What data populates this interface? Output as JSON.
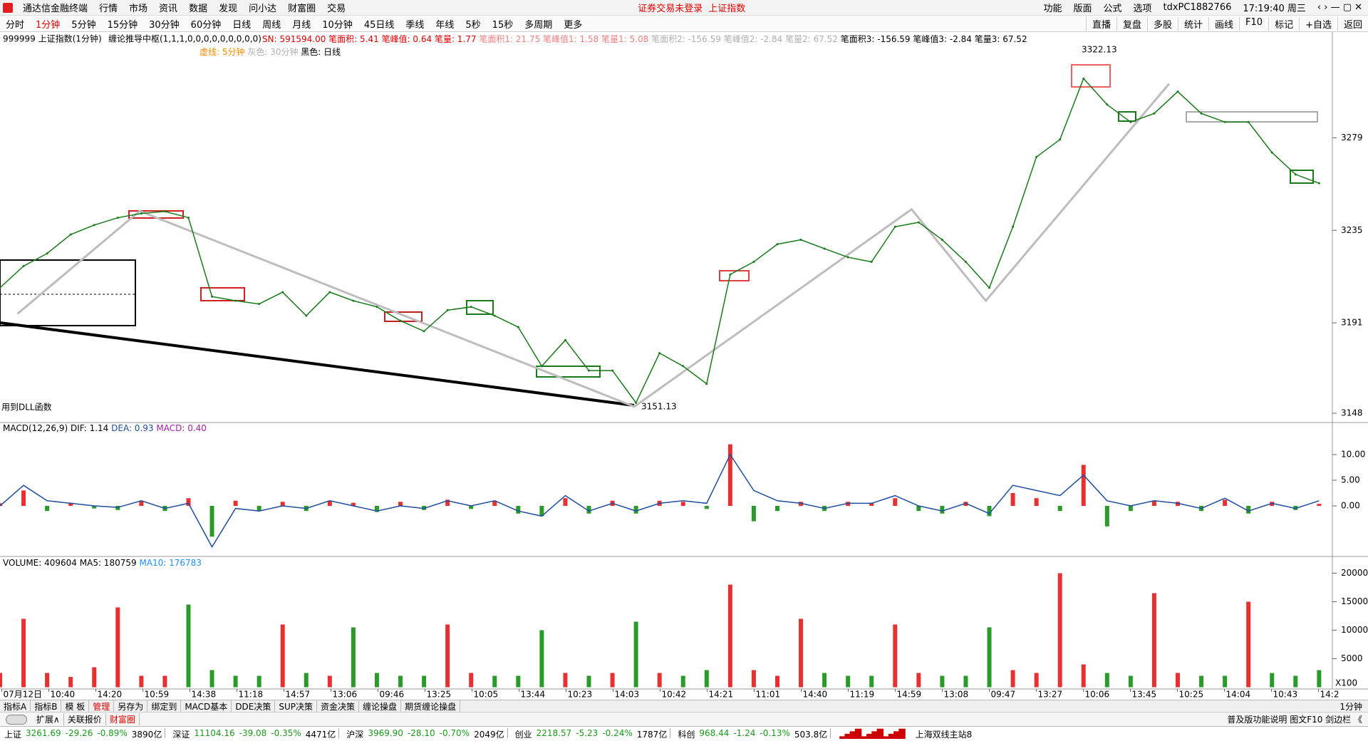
{
  "title_bar": {
    "app": "通达信金融终端",
    "menus": [
      "行情",
      "市场",
      "资讯",
      "数据",
      "发现",
      "问小达",
      "财富圈",
      "交易"
    ],
    "notice": "证券交易未登录",
    "notice_stock": "上证指数",
    "tools": [
      "功能",
      "版面",
      "公式",
      "选项"
    ],
    "user": "tdxPC1882766",
    "clock": "17:19:40 周三"
  },
  "period_bar": {
    "periods": [
      "分时",
      "1分钟",
      "5分钟",
      "15分钟",
      "30分钟",
      "60分钟",
      "日线",
      "周线",
      "月线",
      "10分钟",
      "45日线",
      "季线",
      "年线",
      "5秒",
      "15秒",
      "多周期",
      "更多"
    ],
    "active": 1,
    "tools": [
      "直播",
      "复盘",
      "多股",
      "统计",
      "画线",
      "F10",
      "标记",
      "+自选",
      "返回"
    ]
  },
  "chart_info": {
    "symbol": "999999 上证指数(1分钟)",
    "indicator": "缠论推导中枢(1,1,1,0,0,0,0,0,0,0,0,0)",
    "sn": "SN: 591594.00",
    "stats": [
      {
        "text": "笔面积: 5.41  笔峰值: 0.64  笔量: 1.77",
        "color": "#e00000"
      },
      {
        "text": "笔面积1: 21.75  笔峰值1: 1.58  笔量1: 5.08",
        "color": "#f08080"
      },
      {
        "text": "笔面积2: -156.59  笔峰值2: -2.84  笔量2: 67.52",
        "color": "#b0b0b0"
      },
      {
        "text": "笔面积3: -156.59  笔峰值3: -2.84  笔量3: 67.52",
        "color": "#000000"
      }
    ],
    "legend": [
      {
        "text": "虚线: 5分钟",
        "color": "#ff8c00"
      },
      {
        "text": "灰色: 30分钟",
        "color": "#b0b0b0"
      },
      {
        "text": "黑色: 日线",
        "color": "#000000"
      }
    ],
    "dll_note": "用到DLL函数"
  },
  "price_chart": {
    "type": "line",
    "color": "#1a7a1a",
    "bi_color": "#bdbdbd",
    "ylim": [
      3143.6,
      3329.3
    ],
    "yticks": [
      3148,
      3191,
      3235,
      3279
    ],
    "values": [
      3207.7,
      3218,
      3224,
      3233,
      3237.5,
      3241,
      3243,
      3244,
      3241,
      3203.5,
      3201.5,
      3200,
      3205.6,
      3194.4,
      3205.6,
      3201.5,
      3198.6,
      3192,
      3187,
      3197,
      3198.6,
      3194.4,
      3189,
      3170.4,
      3182.8,
      3168.3,
      3168.3,
      3153,
      3176.6,
      3170.4,
      3162,
      3214,
      3220,
      3228.4,
      3230.5,
      3226.3,
      3222.2,
      3220,
      3236.7,
      3238.8,
      3230.5,
      3220,
      3207.7,
      3236.7,
      3269.9,
      3278.2,
      3307.2,
      3294.8,
      3286.5,
      3290.6,
      3301,
      3290.6,
      3286.5,
      3286.5,
      3272,
      3261.6,
      3257.4
    ],
    "bi": {
      "x": [
        0.74,
        5.93,
        26.93,
        38.7,
        41.85,
        49.63
      ],
      "values": [
        3195.3,
        3244.2,
        3151.13,
        3245,
        3201.5,
        3304.7
      ]
    },
    "high_label": "3322.13",
    "low_label": "3151.13"
  },
  "macd_chart": {
    "type": "bar",
    "title": "MACD(12,26,9)",
    "dif_label": "DIF: 1.14",
    "dea_label": "DEA: 0.93",
    "macd_label": "MACD: 0.40",
    "dif_color": "#1f4e9e",
    "up_color": "#e83030",
    "down_color": "#2a9a2a",
    "ylim": [
      -9.86,
      16.25
    ],
    "yticks": [
      {
        "value": 0,
        "label": "0.00"
      },
      {
        "value": 5,
        "label": "5.00"
      },
      {
        "value": 10,
        "label": "10.00"
      }
    ],
    "dif": [
      0,
      4,
      1,
      0.5,
      0,
      -0.3,
      1,
      -0.5,
      0.5,
      -8,
      -0.5,
      -1,
      0,
      -0.5,
      1,
      0,
      -1,
      0,
      -0.5,
      1,
      0,
      1,
      -1,
      -2,
      2,
      -1,
      0.5,
      -1,
      0.5,
      1,
      0.5,
      10,
      3,
      1,
      0.5,
      -0.5,
      0.5,
      0.5,
      2,
      0,
      -1,
      0.5,
      -1.5,
      4,
      3,
      2,
      6,
      1,
      0,
      1,
      0.5,
      -0.5,
      1.5,
      -1,
      0.5,
      -0.5,
      1
    ],
    "values": [
      0.5,
      3,
      -1,
      0.6,
      -0.5,
      -0.8,
      1,
      -1,
      1.5,
      -6,
      1,
      -1,
      0.8,
      -1,
      1,
      0.6,
      -1.2,
      0.8,
      -0.8,
      1.2,
      -0.6,
      1,
      -1.5,
      -2,
      1.5,
      -1.5,
      1,
      -1.5,
      1,
      0.8,
      -0.6,
      12,
      -3,
      -1,
      0.8,
      -1,
      0.8,
      0.6,
      1.5,
      -1,
      -1.5,
      0.8,
      -2,
      2.5,
      1.5,
      -1,
      8,
      -4,
      -1,
      1,
      0.8,
      -1,
      1.2,
      -1.5,
      0.8,
      -0.8,
      0.4
    ]
  },
  "volume_chart": {
    "type": "bar",
    "title": "VOLUME: 409604",
    "ma5_label": "MA5: 180759",
    "ma10_label": "MA10: 176783",
    "ma10_color": "#1e90ff",
    "up_color": "#e83030",
    "down_color": "#2a9a2a",
    "unit": "X100",
    "ylim": [
      -312,
      22937
    ],
    "yticks": [
      5000,
      10000,
      15000,
      20000
    ],
    "values": [
      2500,
      12000,
      2500,
      1800,
      3500,
      14000,
      2000,
      2000,
      14500,
      3000,
      2000,
      2000,
      11000,
      2500,
      2000,
      10500,
      2500,
      2000,
      2000,
      11000,
      2500,
      2000,
      2000,
      10000,
      2500,
      2000,
      2500,
      11500,
      2500,
      2000,
      3000,
      18000,
      3000,
      2000,
      12000,
      2500,
      2000,
      2000,
      11000,
      2500,
      2000,
      2000,
      10500,
      3000,
      2500,
      20000,
      4000,
      2500,
      2000,
      16500,
      2500,
      2000,
      2000,
      15000,
      2500,
      2000,
      3000
    ]
  },
  "time_axis": [
    "07月12日",
    "10:40",
    "14:20",
    "10:59",
    "14:38",
    "11:18",
    "14:57",
    "13:06",
    "09:46",
    "13:25",
    "10:05",
    "13:44",
    "10:23",
    "14:03",
    "10:42",
    "14:21",
    "11:01",
    "14:40",
    "11:19",
    "14:59",
    "13:08",
    "09:47",
    "13:27",
    "10:06",
    "13:45",
    "10:25",
    "14:04",
    "10:43",
    "14:2"
  ],
  "tabs": {
    "items": [
      "指标A",
      "指标B",
      "模 板",
      "管理",
      "另存为",
      "绑定到",
      "MACD基本",
      "DDE决策",
      "SUP决策",
      "资金决策",
      "缠论操盘",
      "期货缠论操盘"
    ],
    "active": 3,
    "period": "1分钟"
  },
  "tabs2": {
    "items": [
      "扩展∧",
      "关联报价",
      "财富圈"
    ],
    "right": "普及版功能说明  图文F10  剑边栏 《"
  },
  "status": {
    "indices": [
      {
        "name": "上证",
        "fields": [
          "3261.69",
          "-29.26",
          "-0.89%",
          "3890亿"
        ]
      },
      {
        "name": "深证",
        "fields": [
          "11104.16",
          "-39.08",
          "-0.35%",
          "4471亿"
        ]
      },
      {
        "name": "沪深",
        "fields": [
          "3969.90",
          "-28.10",
          "-0.70%",
          "2049亿"
        ]
      },
      {
        "name": "创业",
        "fields": [
          "2218.57",
          "-5.23",
          "-0.24%",
          "1787亿"
        ]
      },
      {
        "name": "科创",
        "fields": [
          "968.44",
          "-1.24",
          "-0.13%",
          "503.8亿"
        ]
      }
    ],
    "down_color": "#1a9a1a",
    "server": "上海双线主站8"
  }
}
